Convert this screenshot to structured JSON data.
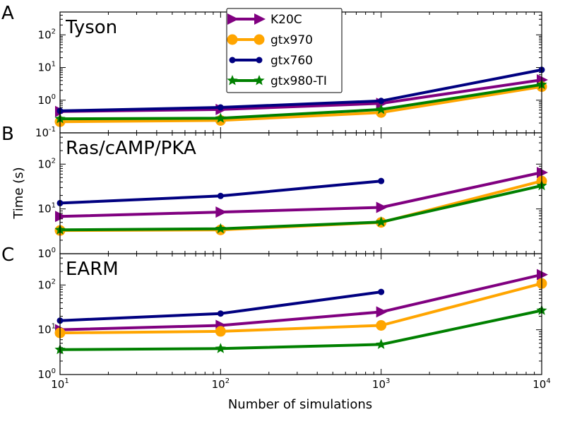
{
  "chart_data": {
    "type": "line",
    "xlabel": "Number of simulations",
    "ylabel": "Time (s)",
    "x_scale": "log",
    "y_scale": "log",
    "xlim": [
      10,
      10000
    ],
    "x_ticks": [
      10,
      100,
      1000,
      10000
    ],
    "legend": {
      "placement": "top-center",
      "entries": [
        {
          "name": "K20C",
          "color": "#800080",
          "marker": "triangle-right"
        },
        {
          "name": "gtx970",
          "color": "#FFA500",
          "marker": "circle"
        },
        {
          "name": "gtx760",
          "color": "#000080",
          "marker": "small-circle"
        },
        {
          "name": "gtx980-TI",
          "color": "#008000",
          "marker": "star"
        }
      ]
    },
    "panels": [
      {
        "letter": "A",
        "title": "Tyson",
        "ylim": [
          0.1,
          500
        ],
        "y_ticks": [
          0.1,
          1,
          10,
          100
        ],
        "series": [
          {
            "name": "K20C",
            "x": [
              10,
              100,
              1000,
              10000
            ],
            "y": [
              0.45,
              0.52,
              0.8,
              4.2
            ]
          },
          {
            "name": "gtx970",
            "x": [
              10,
              100,
              1000,
              10000
            ],
            "y": [
              0.22,
              0.24,
              0.42,
              2.6
            ]
          },
          {
            "name": "gtx760",
            "x": [
              10,
              100,
              1000,
              10000
            ],
            "y": [
              0.47,
              0.6,
              0.95,
              8.5
            ]
          },
          {
            "name": "gtx980-TI",
            "x": [
              10,
              100,
              1000,
              10000
            ],
            "y": [
              0.27,
              0.28,
              0.52,
              3.0
            ]
          }
        ]
      },
      {
        "letter": "B",
        "title": "Ras/cAMP/PKA",
        "ylim": [
          1,
          500
        ],
        "y_ticks": [
          1,
          10,
          100
        ],
        "series": [
          {
            "name": "K20C",
            "x": [
              10,
              100,
              1000,
              10000
            ],
            "y": [
              6.8,
              8.5,
              10.8,
              65
            ]
          },
          {
            "name": "gtx970",
            "x": [
              10,
              100,
              1000,
              10000
            ],
            "y": [
              3.3,
              3.4,
              5.0,
              42
            ]
          },
          {
            "name": "gtx760",
            "x": [
              10,
              100,
              1000
            ],
            "y": [
              13.5,
              19.5,
              42
            ]
          },
          {
            "name": "gtx980-TI",
            "x": [
              10,
              100,
              1000,
              10000
            ],
            "y": [
              3.4,
              3.6,
              5.1,
              33
            ]
          }
        ]
      },
      {
        "letter": "C",
        "title": "EARM",
        "ylim": [
          1,
          500
        ],
        "y_ticks": [
          1,
          10,
          100
        ],
        "series": [
          {
            "name": "K20C",
            "x": [
              10,
              100,
              1000,
              10000
            ],
            "y": [
              10,
              12.5,
              25,
              170
            ]
          },
          {
            "name": "gtx970",
            "x": [
              10,
              100,
              1000,
              10000
            ],
            "y": [
              8.5,
              9.2,
              12.5,
              108
            ]
          },
          {
            "name": "gtx760",
            "x": [
              10,
              100,
              1000
            ],
            "y": [
              16,
              23,
              70
            ]
          },
          {
            "name": "gtx980-TI",
            "x": [
              10,
              100,
              1000,
              10000
            ],
            "y": [
              3.6,
              3.8,
              4.7,
              27
            ]
          }
        ]
      }
    ]
  }
}
